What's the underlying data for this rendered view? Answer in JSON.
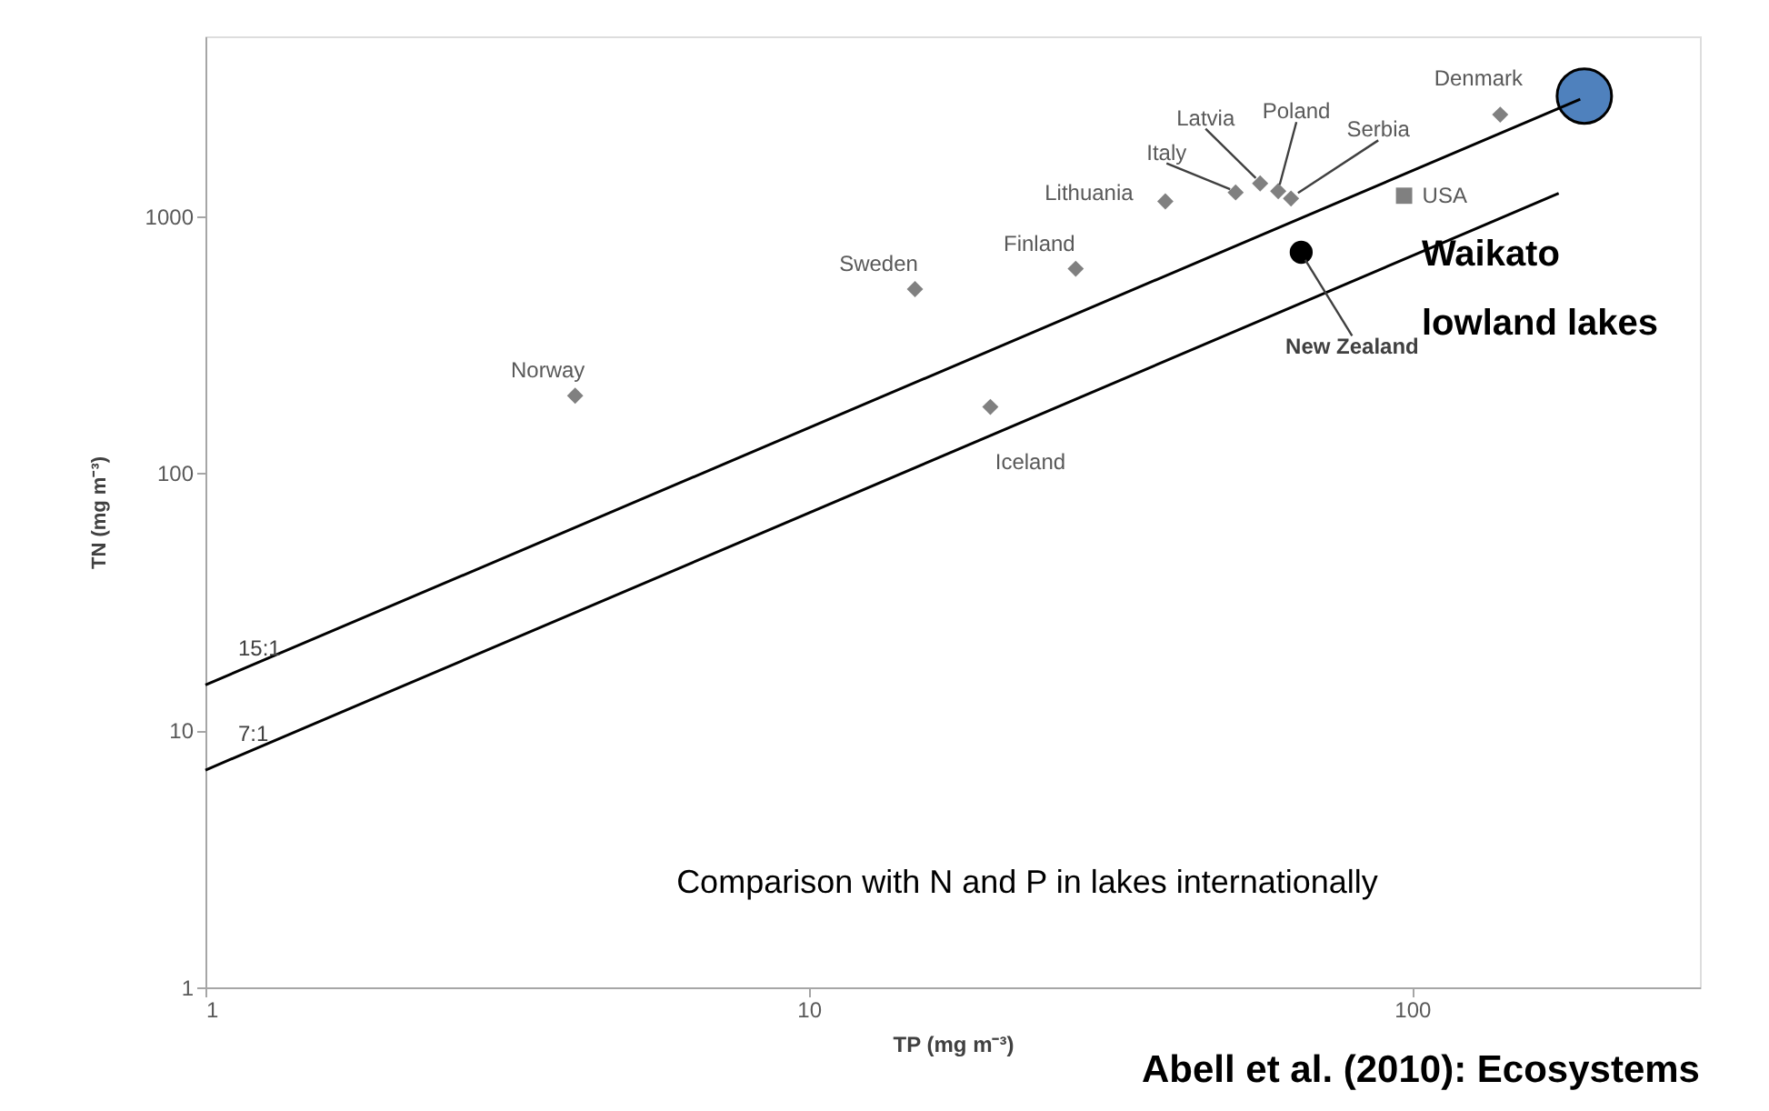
{
  "chart_data": {
    "type": "scatter",
    "xlabel": "TP (mg m⁻³)",
    "ylabel": "TN (mg m⁻³)",
    "log": "xy",
    "grid": false,
    "xlim": [
      1,
      300
    ],
    "ylim": [
      1,
      5000
    ],
    "xticks": [
      1,
      10,
      100
    ],
    "yticks": [
      1,
      10,
      100,
      {
        "value": 1000,
        "label": "1000"
      }
    ],
    "series": [
      {
        "type": "scatter",
        "marker": "diamond",
        "color": "#808080",
        "x": [
          4.1,
          15,
          20,
          27.7,
          39,
          51,
          56,
          60,
          63,
          140
        ],
        "values": [
          200,
          520,
          181,
          624,
          1140,
          1236,
          1340,
          1250,
          1170,
          2480
        ]
      },
      {
        "type": "scatter",
        "marker": "square",
        "color": "#808080",
        "x": [
          97
        ],
        "values": [
          1200
        ]
      },
      {
        "type": "scatter",
        "marker": "circle",
        "color": "#000000",
        "x": [
          65.5
        ],
        "values": [
          723
        ]
      },
      {
        "type": "scatter",
        "marker": "circle",
        "color": "#4f81bd",
        "x": [
          193
        ],
        "values": [
          2930
        ]
      },
      {
        "type": "line",
        "name": "15:1",
        "line_style": "solid",
        "color": "#000000",
        "x": [
          1,
          190
        ],
        "values": [
          15,
          2850
        ]
      },
      {
        "type": "line",
        "name": "7:1",
        "line_style": "solid",
        "color": "#000000",
        "x": [
          1,
          175
        ],
        "values": [
          7,
          1225
        ]
      }
    ],
    "annotations": [
      {
        "text": "Norway",
        "x": 4.1,
        "y": 200
      },
      {
        "text": "Sweden",
        "x": 15,
        "y": 520
      },
      {
        "text": "Iceland",
        "x": 20,
        "y": 181
      },
      {
        "text": "Finland",
        "x": 27.7,
        "y": 624
      },
      {
        "text": "Lithuania",
        "x": 39,
        "y": 1140
      },
      {
        "text": "Italy",
        "x": 51,
        "y": 1236
      },
      {
        "text": "Latvia",
        "x": 56,
        "y": 1340
      },
      {
        "text": "Poland",
        "x": 60,
        "y": 1250
      },
      {
        "text": "Serbia",
        "x": 63,
        "y": 1170
      },
      {
        "text": "Denmark",
        "x": 140,
        "y": 2480
      },
      {
        "text": "USA",
        "x": 97,
        "y": 1200
      },
      {
        "text": "New Zealand",
        "x": 65.5,
        "y": 723
      },
      "Waikato\nlowland lakes",
      "Comparison with N and P in lakes internationally",
      "Abell et al.  (2010): Ecosystems"
    ]
  }
}
